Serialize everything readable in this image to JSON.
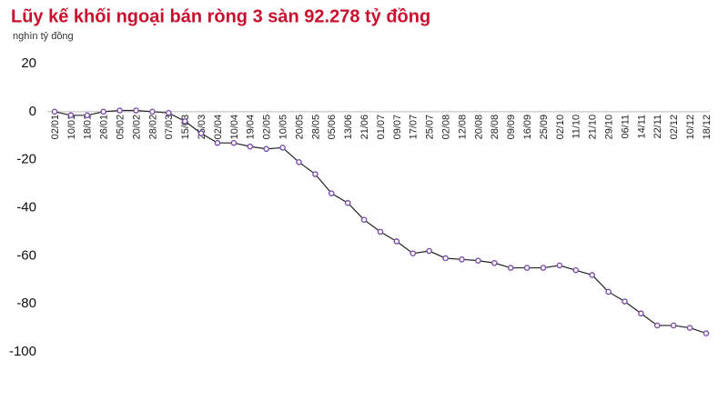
{
  "chart_data": {
    "type": "line",
    "title": "Lũy kế khối ngoại bán ròng 3 sàn 92.278 tỷ đồng",
    "y_axis_label": "nghìn tỷ đồng",
    "categories": [
      "02/01",
      "10/01",
      "18/01",
      "26/01",
      "05/02",
      "20/02",
      "28/02",
      "07/03",
      "15/03",
      "25/03",
      "02/04",
      "10/04",
      "19/04",
      "02/05",
      "10/05",
      "20/05",
      "28/05",
      "05/06",
      "13/06",
      "21/06",
      "01/07",
      "09/07",
      "17/07",
      "25/07",
      "02/08",
      "12/08",
      "20/08",
      "28/08",
      "09/09",
      "16/09",
      "25/09",
      "02/10",
      "11/10",
      "21/10",
      "29/10",
      "06/11",
      "14/11",
      "22/11",
      "02/12",
      "10/12",
      "18/12"
    ],
    "series": [
      {
        "color": "#7b4fa8",
        "values": [
          0,
          -1.5,
          -1.5,
          0,
          0.5,
          0.5,
          0,
          -0.5,
          -4,
          -9,
          -13,
          -13,
          -14.5,
          -15.5,
          -15,
          -21,
          -26,
          -34,
          -38,
          -45,
          -50,
          -54,
          -59,
          -58,
          -61,
          -61.5,
          -62,
          -63,
          -65,
          -65,
          -65,
          -64,
          -66,
          -68,
          -75,
          -79,
          -84,
          -89,
          -89,
          -90,
          -92.278
        ]
      }
    ],
    "ylim": [
      -100,
      20
    ],
    "yticks": [
      -100,
      -80,
      -60,
      -40,
      -20,
      0,
      20
    ],
    "grid": false
  }
}
